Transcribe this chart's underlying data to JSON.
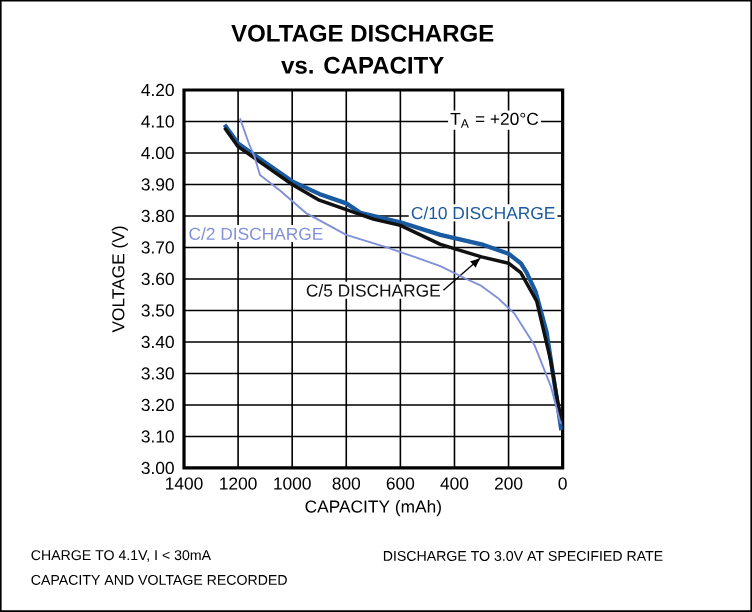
{
  "chart_data": {
    "type": "line",
    "title": "VOLTAGE DISCHARGE",
    "subtitle": "vs. CAPACITY",
    "xlabel": "CAPACITY (mAh)",
    "ylabel": "VOLTAGE (V)",
    "xlim": [
      1400,
      0
    ],
    "xticks": [
      1400,
      1200,
      1000,
      800,
      600,
      400,
      200,
      0
    ],
    "ylim": [
      3.0,
      4.2
    ],
    "yticks": [
      {
        "value": 3.0,
        "label": "3.00"
      },
      {
        "value": 3.1,
        "label": "3.10"
      },
      {
        "value": 3.2,
        "label": "3.20"
      },
      {
        "value": 3.3,
        "label": "3.30"
      },
      {
        "value": 3.4,
        "label": "3.40"
      },
      {
        "value": 3.5,
        "label": "3.50"
      },
      {
        "value": 3.6,
        "label": "3.60"
      },
      {
        "value": 3.7,
        "label": "3.70"
      },
      {
        "value": 3.8,
        "label": "3.80"
      },
      {
        "value": 3.9,
        "label": "3.90"
      },
      {
        "value": 4.0,
        "label": "4.00"
      },
      {
        "value": 4.1,
        "label": "4.10"
      },
      {
        "value": 4.2,
        "label": "4.20"
      }
    ],
    "grid": true,
    "legend": false,
    "marker": "none",
    "line_style": "solid",
    "series": [
      {
        "name": "C/10 DISCHARGE",
        "color": "#1a5aa0",
        "x": [
          1250,
          1200,
          1100,
          1000,
          900,
          800,
          748,
          600,
          452,
          300,
          200,
          155,
          133,
          100,
          59,
          22,
          5
        ],
        "values": [
          4.09,
          4.03,
          3.97,
          3.91,
          3.87,
          3.84,
          3.81,
          3.78,
          3.74,
          3.71,
          3.68,
          3.65,
          3.62,
          3.56,
          3.43,
          3.22,
          3.12
        ]
      },
      {
        "name": "C/5 DISCHARGE",
        "color": "#111111",
        "x": [
          1250,
          1200,
          1100,
          1000,
          900,
          800,
          700,
          600,
          452,
          300,
          200,
          155,
          96,
          44,
          20,
          5
        ],
        "values": [
          4.08,
          4.02,
          3.96,
          3.9,
          3.85,
          3.82,
          3.79,
          3.77,
          3.71,
          3.67,
          3.65,
          3.62,
          3.53,
          3.34,
          3.22,
          3.15
        ]
      },
      {
        "name": "C/2 DISCHARGE",
        "color": "#7f8fd8",
        "x": [
          1193,
          1160,
          1140,
          1119,
          1044,
          950,
          800,
          650,
          548,
          450,
          356,
          304,
          240,
          178,
          104,
          44,
          7
        ],
        "values": [
          4.11,
          4.03,
          3.99,
          3.93,
          3.88,
          3.81,
          3.74,
          3.7,
          3.67,
          3.64,
          3.6,
          3.58,
          3.54,
          3.49,
          3.39,
          3.26,
          3.14
        ]
      }
    ],
    "annotations": [
      "T$_{A}$ = +20°C",
      "CHARGE TO 4.1V, I < 30mA",
      "CAPACITY AND VOLTAGE RECORDED",
      "DISCHARGE TO 3.0V AT SPECIFIED RATE"
    ]
  }
}
